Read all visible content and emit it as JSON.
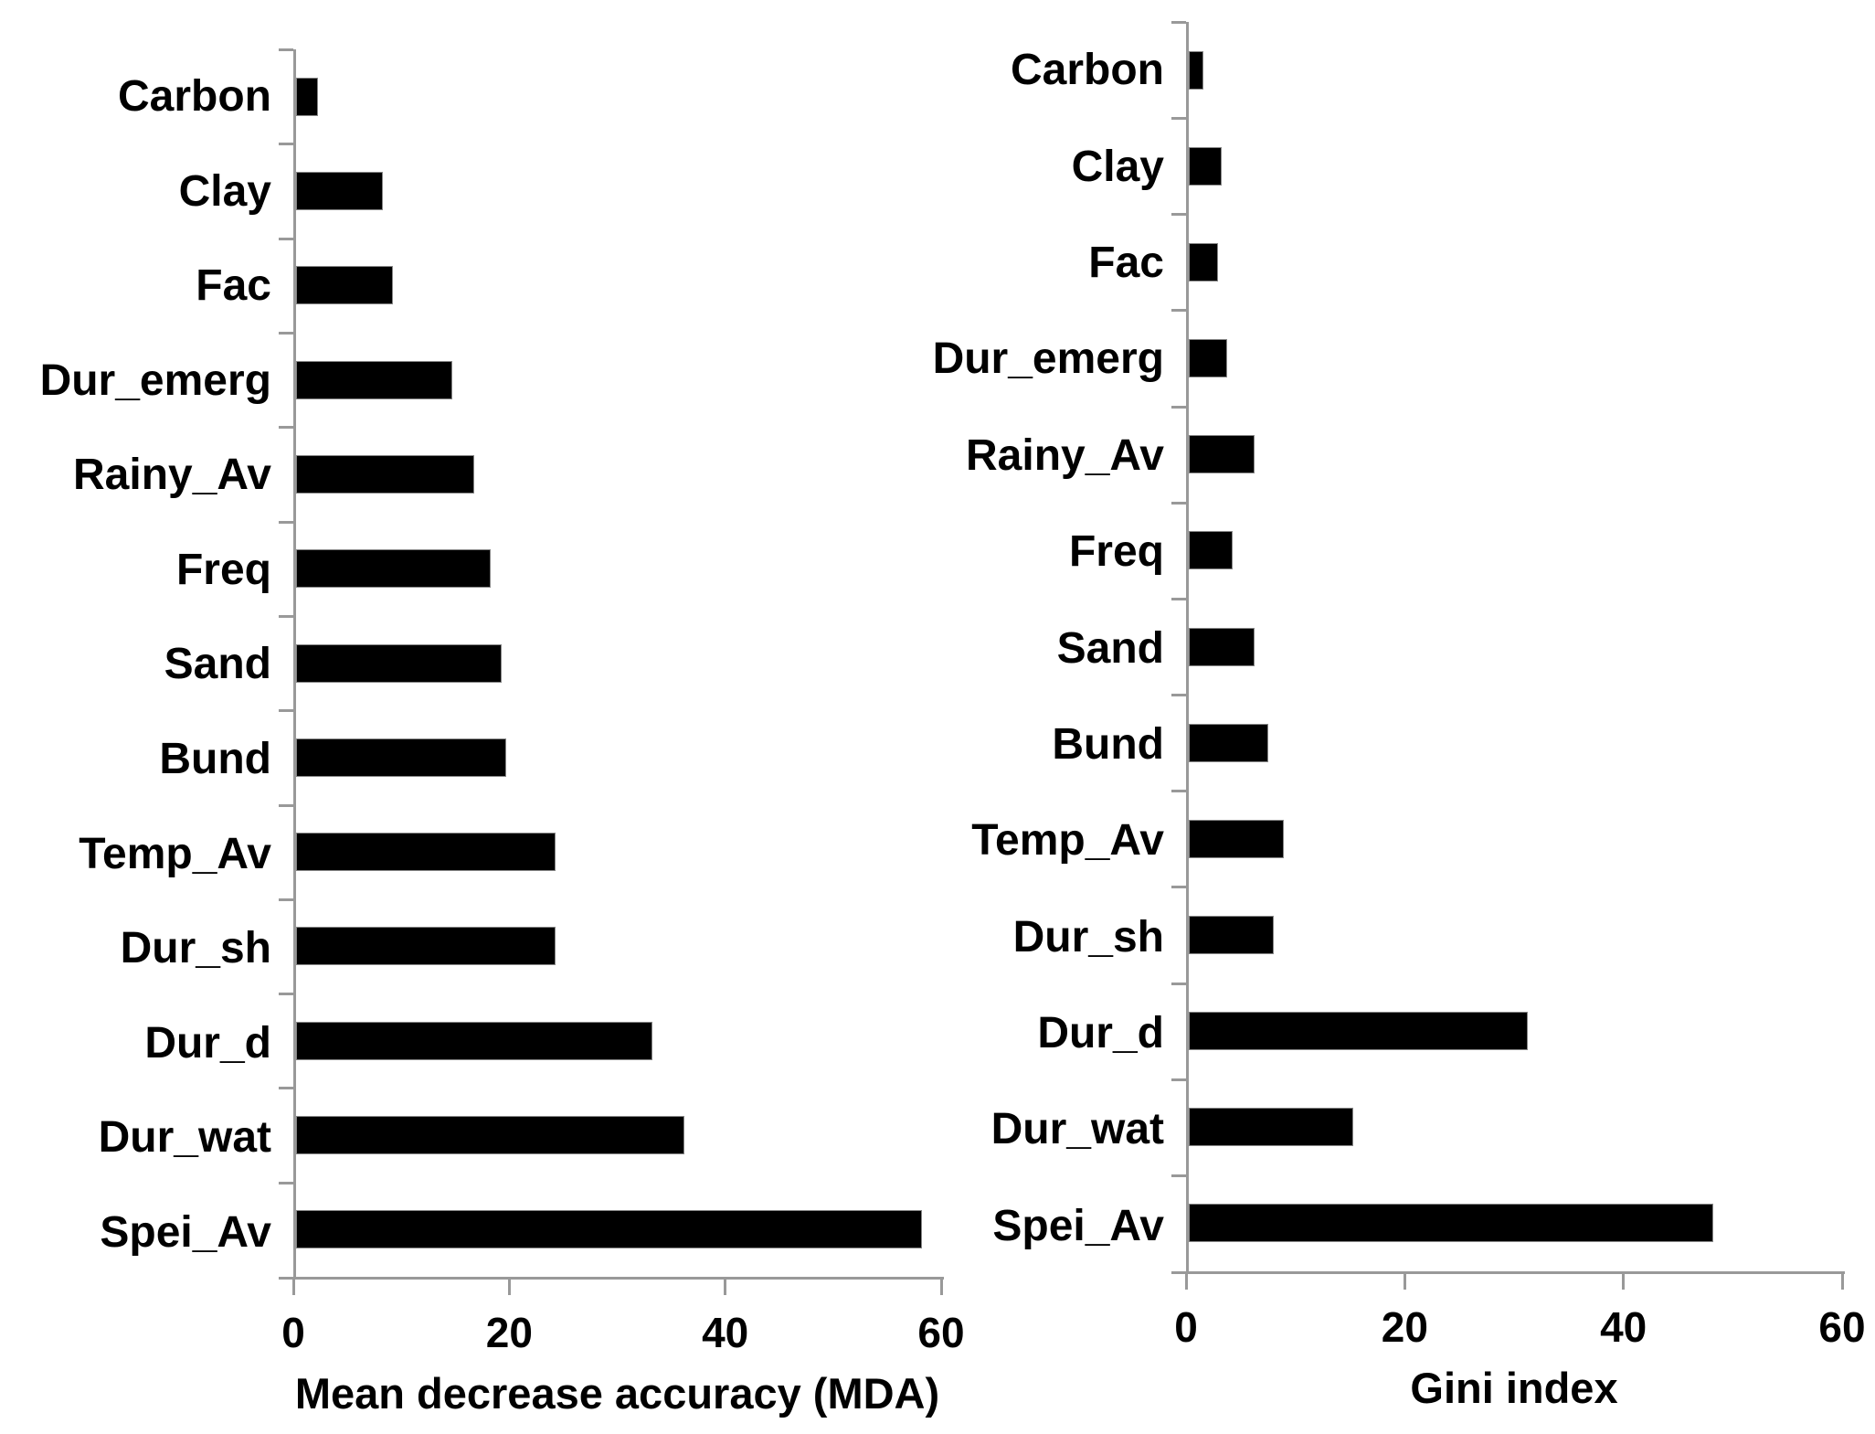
{
  "colors": {
    "bar_fill": "#000000",
    "bar_outline": "#868686",
    "axis_line": "#999999",
    "text": "#000000",
    "background": "#ffffff"
  },
  "chart_data": [
    {
      "type": "bar",
      "orientation": "horizontal",
      "xlabel": "Mean decrease accuracy (MDA)",
      "ylabel": "",
      "categories": [
        "Carbon",
        "Clay",
        "Fac",
        "Dur_emerg",
        "Rainy_Av",
        "Freq",
        "Sand",
        "Bund",
        "Temp_Av",
        "Dur_sh",
        "Dur_d",
        "Dur_wat",
        "Spei_Av"
      ],
      "values": [
        2,
        8,
        9,
        14.5,
        16.5,
        18,
        19,
        19.5,
        24,
        24,
        33,
        36,
        58
      ],
      "xlim": [
        0,
        60
      ],
      "xticks": [
        0,
        20,
        40,
        60
      ],
      "grid": false,
      "legend": false
    },
    {
      "type": "bar",
      "orientation": "horizontal",
      "xlabel": "Gini index",
      "ylabel": "",
      "categories": [
        "Carbon",
        "Clay",
        "Fac",
        "Dur_emerg",
        "Rainy_Av",
        "Freq",
        "Sand",
        "Bund",
        "Temp_Av",
        "Dur_sh",
        "Dur_d",
        "Dur_wat",
        "Spei_Av"
      ],
      "values": [
        1.3,
        3,
        2.7,
        3.5,
        6,
        4,
        6,
        7.3,
        8.7,
        7.8,
        31,
        15,
        48
      ],
      "xlim": [
        0,
        60
      ],
      "xticks": [
        0,
        20,
        40,
        60
      ],
      "grid": false,
      "legend": false
    }
  ]
}
